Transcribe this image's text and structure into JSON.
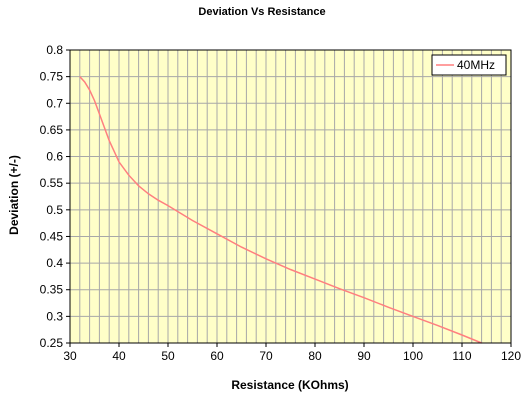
{
  "chart_data": {
    "type": "line",
    "title": "Deviation Vs Resistance",
    "xlabel": "Resistance (KOhms)",
    "ylabel": "Deviation (+/-)",
    "xlim": [
      30,
      120
    ],
    "ylim": [
      0.25,
      0.8
    ],
    "x_ticks": [
      "30",
      "40",
      "50",
      "60",
      "70",
      "80",
      "90",
      "100",
      "110",
      "120"
    ],
    "y_ticks": [
      "0.25",
      "0.3",
      "0.35",
      "0.4",
      "0.45",
      "0.5",
      "0.55",
      "0.6",
      "0.65",
      "0.7",
      "0.75",
      "0.8"
    ],
    "x_minor_step": 2,
    "grid": true,
    "legend_position": "top-right",
    "plot_background": "#ffffc8",
    "series": [
      {
        "name": "40MHz",
        "color": "#ff7f7f",
        "x": [
          32,
          33,
          34,
          35,
          36,
          37,
          38,
          39,
          40,
          42,
          44,
          46,
          48,
          50,
          55,
          60,
          65,
          70,
          75,
          80,
          85,
          90,
          95,
          100,
          105,
          110,
          114
        ],
        "y": [
          0.75,
          0.74,
          0.725,
          0.705,
          0.68,
          0.655,
          0.63,
          0.61,
          0.59,
          0.565,
          0.545,
          0.53,
          0.518,
          0.508,
          0.48,
          0.455,
          0.43,
          0.408,
          0.388,
          0.37,
          0.352,
          0.335,
          0.317,
          0.3,
          0.283,
          0.265,
          0.25
        ]
      }
    ]
  }
}
